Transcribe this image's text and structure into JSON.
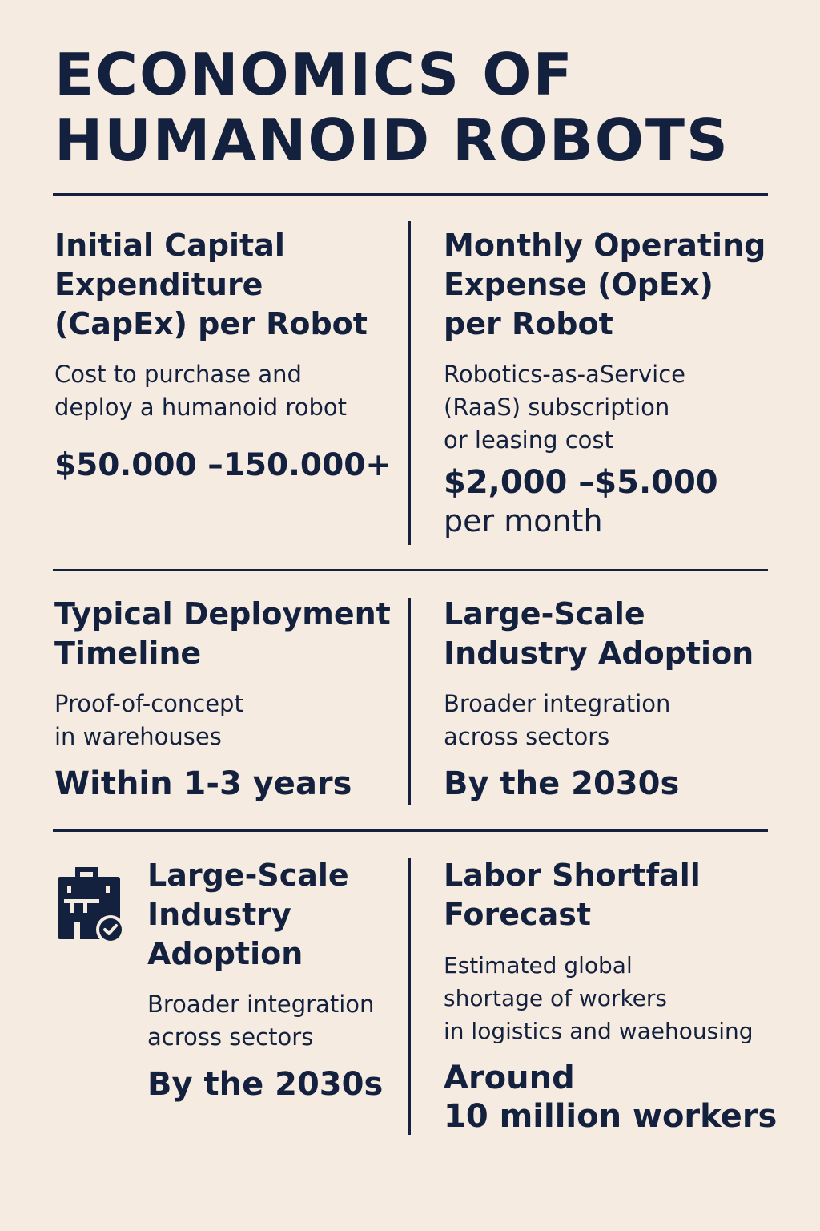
{
  "title": "ECONOMICS OF\nHUMANOID ROBOTS",
  "cells": {
    "capex": {
      "heading": "Initial Capital Expenditure (CapEx) per Robot",
      "desc": "Cost to purchase and\ndeploy a humanoid robot",
      "value": "$50.000 –150.000+"
    },
    "opex": {
      "heading": "Monthly Operating Expense (OpEx) per Robot",
      "desc": "Robotics-as-aService\n(RaaS) subscription\nor leasing cost",
      "value": "$2,000 –$5.000",
      "value_sub": "per month"
    },
    "timeline": {
      "heading": "Typical Deployment Timeline",
      "desc": "Proof-of-concept\nin warehouses",
      "value": "Within 1-3 years"
    },
    "adoption": {
      "heading": "Large-Scale Industry Adoption",
      "desc": "Broader integration\nacross sectors",
      "value": "By the 2030s"
    },
    "adoption_icon_card": {
      "icon": "briefcase-check-icon",
      "heading": "Large-Scale Industry Adoption",
      "desc": "Broader integration\nacross sectors",
      "value": "By the 2030s"
    },
    "labor": {
      "heading": "Labor Shortfall Forecast",
      "desc": "Estimated global\nshortage of workers\nin logistics and waehousing",
      "value": "Around\n10 million workers"
    }
  },
  "colors": {
    "background": "#f6ebe0",
    "ink": "#13213f"
  }
}
